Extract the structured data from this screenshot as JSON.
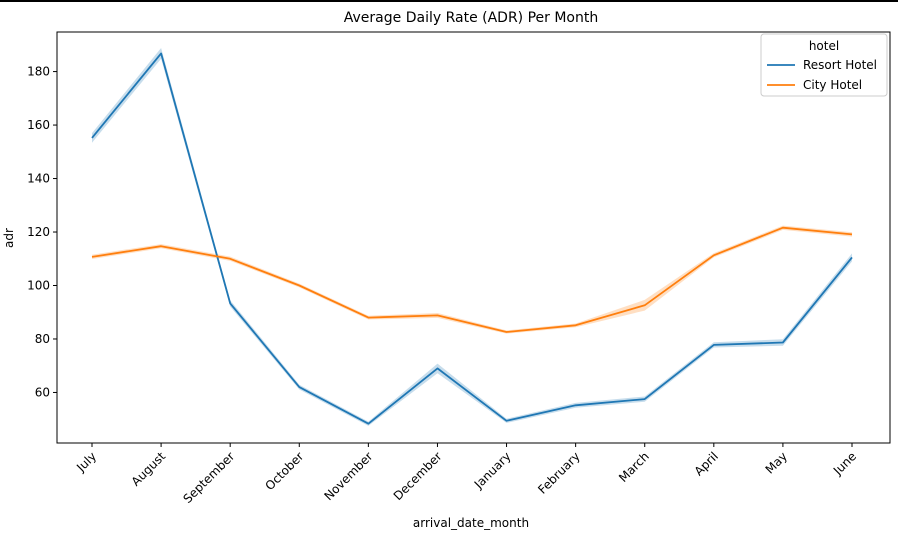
{
  "chart_data": {
    "type": "line",
    "title": "Average Daily Rate (ADR) Per Month",
    "xlabel": "arrival_date_month",
    "ylabel": "adr",
    "categories": [
      "July",
      "August",
      "September",
      "October",
      "November",
      "December",
      "January",
      "February",
      "March",
      "April",
      "May",
      "June"
    ],
    "yticks": [
      60,
      80,
      100,
      120,
      140,
      160,
      180
    ],
    "ylim": [
      41.1,
      194.8
    ],
    "grid": false,
    "legend": {
      "title": "hotel",
      "placement": "top-right"
    },
    "series": [
      {
        "name": "Resort Hotel",
        "color": "#1f77b4",
        "values": [
          155.2,
          186.8,
          93.3,
          62.0,
          48.3,
          69.0,
          49.4,
          55.2,
          57.5,
          77.8,
          78.7,
          110.5
        ],
        "ci_halfwidth": [
          1.8,
          2.0,
          1.2,
          0.9,
          0.8,
          1.8,
          0.8,
          0.9,
          1.0,
          1.0,
          1.2,
          1.5
        ]
      },
      {
        "name": "City Hotel",
        "color": "#ff7f0e",
        "values": [
          110.7,
          114.7,
          110.0,
          100.0,
          88.0,
          88.8,
          82.6,
          85.1,
          92.6,
          111.3,
          121.6,
          119.1
        ],
        "ci_halfwidth": [
          0.8,
          0.8,
          0.8,
          0.7,
          0.7,
          0.9,
          0.6,
          0.7,
          2.0,
          0.8,
          0.8,
          0.8
        ]
      }
    ]
  }
}
